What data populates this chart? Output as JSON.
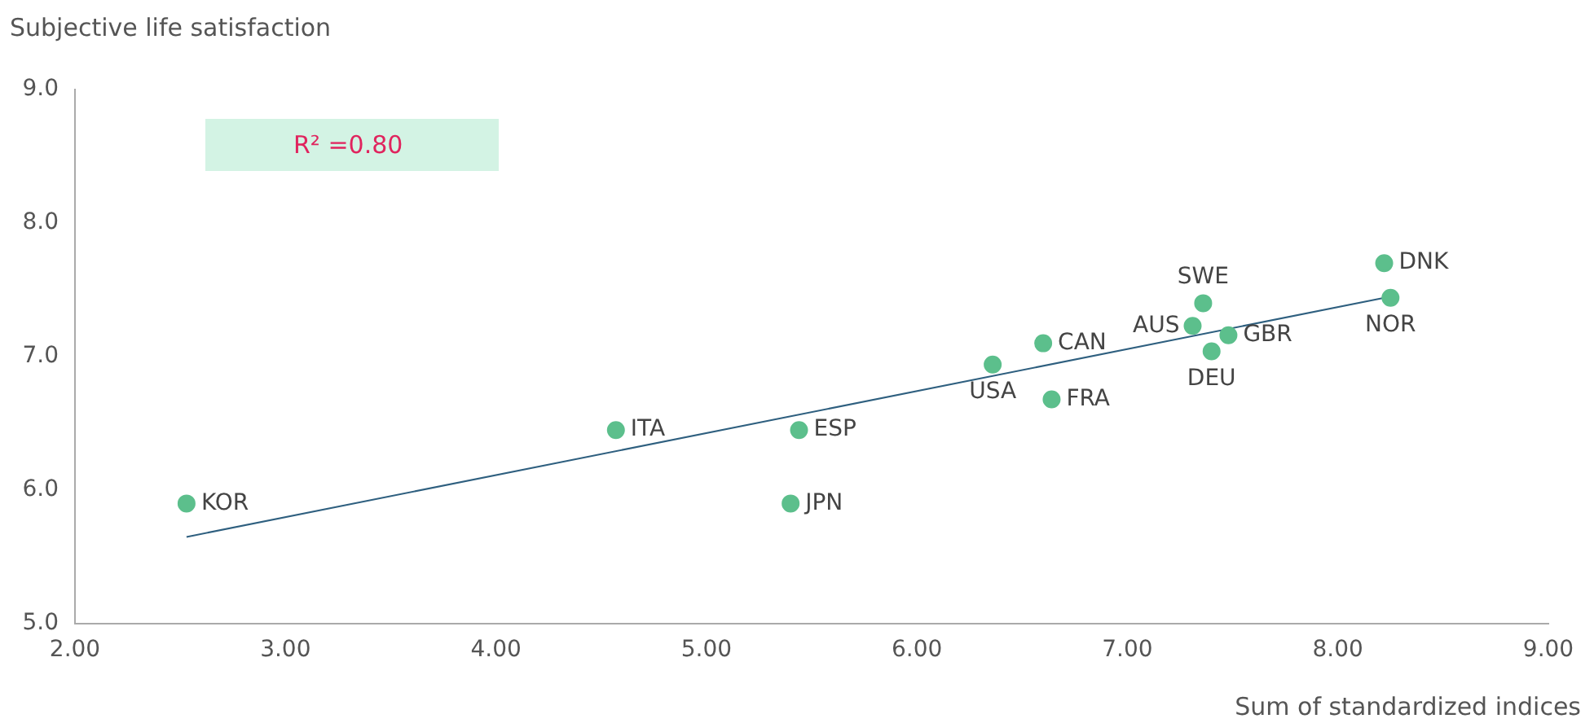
{
  "chart_data": {
    "type": "scatter",
    "xlabel": "Sum of standardized indices",
    "ylabel": "Subjective life satisfaction",
    "xlim": [
      2,
      9
    ],
    "ylim": [
      5,
      9
    ],
    "xticks": [
      {
        "value": 2,
        "label": "2.00"
      },
      {
        "value": 3,
        "label": "3.00"
      },
      {
        "value": 4,
        "label": "4.00"
      },
      {
        "value": 5,
        "label": "5.00"
      },
      {
        "value": 6,
        "label": "6.00"
      },
      {
        "value": 7,
        "label": "7.00"
      },
      {
        "value": 8,
        "label": "8.00"
      },
      {
        "value": 9,
        "label": "9.00"
      }
    ],
    "yticks": [
      {
        "value": 5,
        "label": "5.0"
      },
      {
        "value": 6,
        "label": "6.0"
      },
      {
        "value": 7,
        "label": "7.0"
      },
      {
        "value": 8,
        "label": "8.0"
      },
      {
        "value": 9,
        "label": "9.0"
      }
    ],
    "grid": false,
    "legend": false,
    "marker": "circle",
    "series": [
      {
        "type": "scatter",
        "color": "#5cbf8c",
        "x": [
          2.53,
          4.57,
          5.44,
          5.4,
          6.36,
          6.6,
          6.64,
          7.31,
          7.36,
          7.4,
          7.48,
          8.22,
          8.25
        ],
        "values": [
          5.9,
          6.45,
          6.45,
          5.9,
          6.94,
          7.1,
          6.68,
          7.23,
          7.4,
          7.04,
          7.16,
          7.7,
          7.44
        ]
      },
      {
        "type": "line",
        "color": "#2e5f7f",
        "marker": "none",
        "x": [
          2.53,
          8.25
        ],
        "values": [
          5.65,
          7.45
        ]
      }
    ],
    "annotations": [
      "R² =0.80",
      {
        "text": "KOR",
        "x": 2.53,
        "y": 5.9
      },
      {
        "text": "ITA",
        "x": 4.57,
        "y": 6.45
      },
      {
        "text": "ESP",
        "x": 5.44,
        "y": 6.45
      },
      {
        "text": "JPN",
        "x": 5.4,
        "y": 5.9
      },
      {
        "text": "USA",
        "x": 6.36,
        "y": 6.94
      },
      {
        "text": "CAN",
        "x": 6.6,
        "y": 7.1
      },
      {
        "text": "FRA",
        "x": 6.64,
        "y": 6.68
      },
      {
        "text": "AUS",
        "x": 7.31,
        "y": 7.23
      },
      {
        "text": "SWE",
        "x": 7.36,
        "y": 7.4
      },
      {
        "text": "DEU",
        "x": 7.4,
        "y": 7.04
      },
      {
        "text": "GBR",
        "x": 7.48,
        "y": 7.16
      },
      {
        "text": "DNK",
        "x": 8.22,
        "y": 7.7
      },
      {
        "text": "NOR",
        "x": 8.25,
        "y": 7.44
      }
    ]
  }
}
